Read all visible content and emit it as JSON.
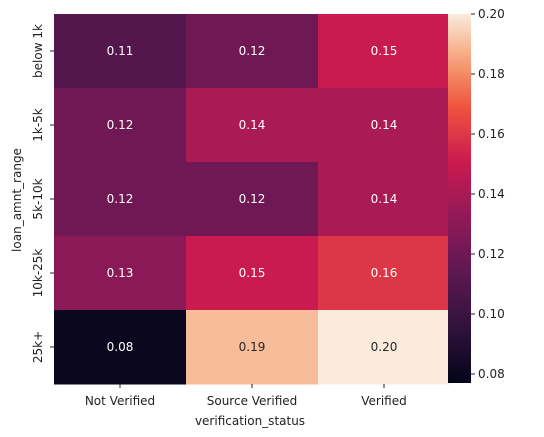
{
  "chart_data": {
    "type": "heatmap",
    "title": "",
    "xlabel": "verification_status",
    "ylabel": "loan_amnt_range",
    "x_categories": [
      "Not Verified",
      "Source Verified",
      "Verified"
    ],
    "y_categories": [
      "below 1k",
      "1k-5k",
      "5k-10k",
      "10k-25k",
      "25k+"
    ],
    "values": [
      [
        0.11,
        0.12,
        0.15
      ],
      [
        0.12,
        0.14,
        0.14
      ],
      [
        0.12,
        0.12,
        0.14
      ],
      [
        0.13,
        0.15,
        0.16
      ],
      [
        0.08,
        0.19,
        0.2
      ]
    ],
    "value_labels": [
      [
        "0.11",
        "0.12",
        "0.15"
      ],
      [
        "0.12",
        "0.14",
        "0.14"
      ],
      [
        "0.12",
        "0.12",
        "0.14"
      ],
      [
        "0.13",
        "0.15",
        "0.16"
      ],
      [
        "0.08",
        "0.19",
        "0.20"
      ]
    ],
    "colorbar": {
      "range": [
        0.077,
        0.2
      ],
      "ticks": [
        0.08,
        0.1,
        0.12,
        0.14,
        0.16,
        0.18,
        0.2
      ],
      "tick_labels": [
        "0.08",
        "0.10",
        "0.12",
        "0.14",
        "0.16",
        "0.18",
        "0.20"
      ],
      "colormap": "rocket"
    },
    "grid": false,
    "legend": "colorbar-right"
  }
}
